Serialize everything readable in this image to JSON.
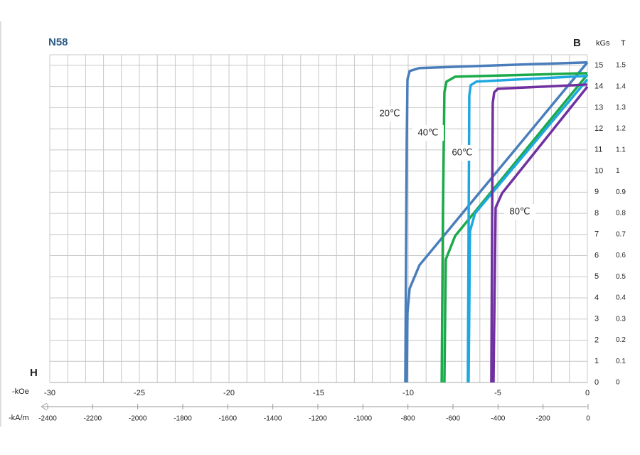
{
  "chart_data": {
    "type": "line",
    "title": "N58",
    "y_axis_label": "B",
    "x_axis_label": "H",
    "y_unit": "kGs",
    "y2_unit": "T",
    "x_unit": "-kOe",
    "x2_unit": "-kA/m",
    "xlim": [
      -30,
      0
    ],
    "xticks": [
      -30,
      -25,
      -20,
      -15,
      -10,
      -5,
      0
    ],
    "xgrid": [
      -30,
      -29,
      -28,
      -27,
      -26,
      -25,
      -24,
      -23,
      -22,
      -21,
      -20,
      -19,
      -18,
      -17,
      -16,
      -15,
      -14,
      -13,
      -12,
      -11,
      -10,
      -9,
      -8,
      -7,
      -6,
      -5,
      -4,
      -3,
      -2,
      -1,
      0
    ],
    "x2lim": [
      -2400,
      0
    ],
    "x2ticks": [
      -2400,
      -2200,
      -2000,
      -1800,
      -1600,
      -1400,
      -1200,
      -1000,
      -800,
      -600,
      -400,
      -200,
      0
    ],
    "ylim": [
      0,
      15.5
    ],
    "yticks": [
      0,
      1,
      2,
      3,
      4,
      5,
      6,
      7,
      8,
      9,
      10,
      11,
      12,
      13,
      14,
      15
    ],
    "y2lim": [
      0,
      1.55
    ],
    "y2ticks": [
      0,
      0.1,
      0.2,
      0.3,
      0.4,
      0.5,
      0.6,
      0.7,
      0.8,
      0.9,
      1,
      1.1,
      1.2,
      1.3,
      1.4,
      1.5
    ],
    "grid": true,
    "curves": [
      {
        "name": "20℃",
        "color": "#4a7ebb",
        "intrinsic": {
          "x": [
            0,
            -5,
            -9.37,
            -9.92,
            -10.04,
            -10.08,
            -10.16
          ],
          "y": [
            15.14,
            15.0,
            14.87,
            14.73,
            14.33,
            11.37,
            0
          ]
        },
        "normal": {
          "x": [
            0,
            -9.37,
            -9.92,
            -10.04,
            -10.08
          ],
          "y": [
            15.14,
            5.55,
            4.44,
            3.3,
            0
          ]
        }
      },
      {
        "name": "40℃",
        "color": "#1aaa4a",
        "intrinsic": {
          "x": [
            0,
            -7.38,
            -7.86,
            -7.98,
            -8.06,
            -8.13
          ],
          "y": [
            14.63,
            14.46,
            14.23,
            13.72,
            8.0,
            0
          ]
        },
        "normal": {
          "x": [
            0,
            -7.38,
            -7.9,
            -7.98
          ],
          "y": [
            14.56,
            6.93,
            5.82,
            0
          ]
        }
      },
      {
        "name": "60℃",
        "color": "#1fa8e0",
        "intrinsic": {
          "x": [
            0,
            -6.19,
            -6.51,
            -6.59,
            -6.67
          ],
          "y": [
            14.5,
            14.23,
            14.06,
            13.56,
            0
          ]
        },
        "normal": {
          "x": [
            0,
            -6.27,
            -6.55,
            -6.63
          ],
          "y": [
            14.33,
            8.0,
            7.16,
            0
          ]
        }
      },
      {
        "name": "80℃",
        "color": "#7030a0",
        "intrinsic": {
          "x": [
            0,
            -5.0,
            -5.2,
            -5.28,
            -5.36
          ],
          "y": [
            14.09,
            13.89,
            13.72,
            13.22,
            0
          ]
        },
        "normal": {
          "x": [
            0,
            -4.76,
            -5.12,
            -5.24
          ],
          "y": [
            13.99,
            8.95,
            8.27,
            0
          ]
        }
      }
    ]
  }
}
